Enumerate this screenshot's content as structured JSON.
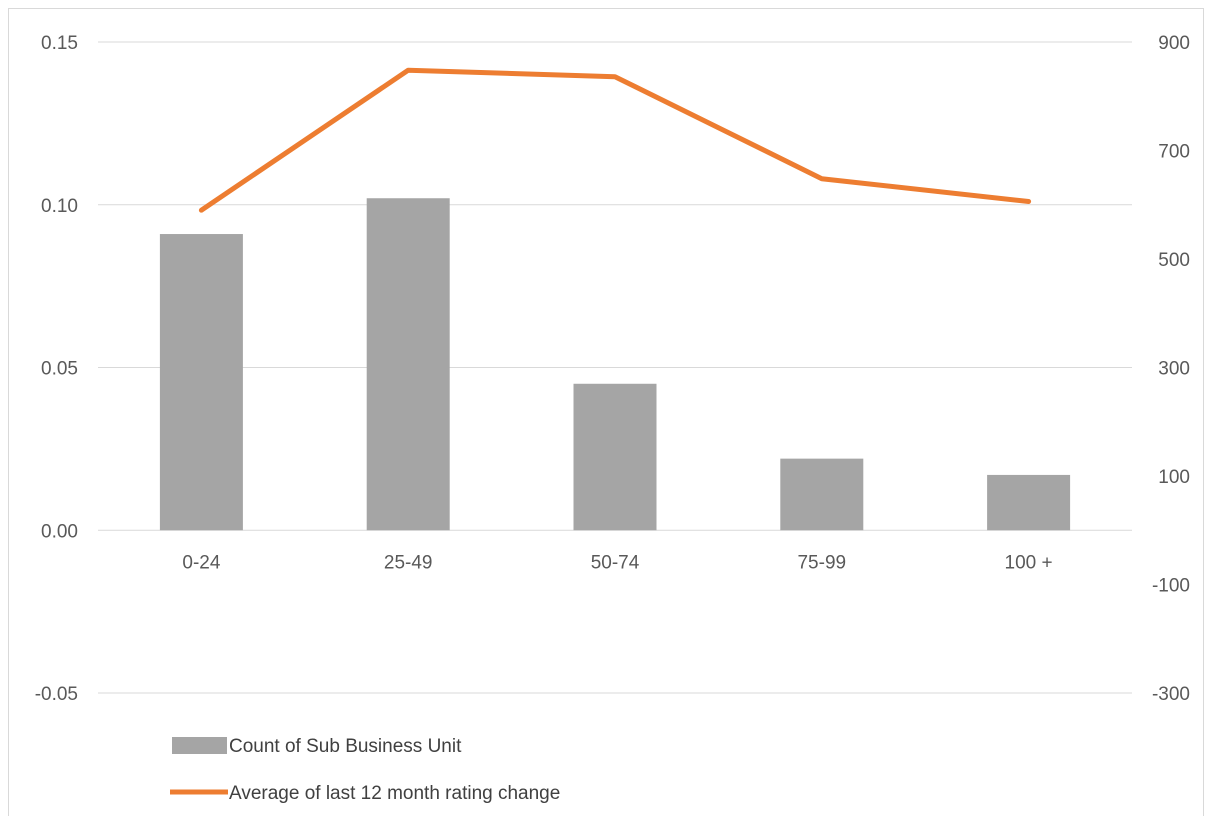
{
  "chart_data": {
    "type": "bar",
    "categories": [
      "0-24",
      "25-49",
      "50-74",
      "75-99",
      "100 +"
    ],
    "series": [
      {
        "name": "Count of Sub Business Unit",
        "type": "bar",
        "axis": "left",
        "color": "#a5a5a5",
        "values": [
          0.091,
          0.102,
          0.045,
          0.022,
          0.017
        ]
      },
      {
        "name": "Average of last 12 month rating change",
        "type": "line",
        "axis": "right",
        "color": "#ed7d31",
        "values": [
          590,
          848,
          836,
          648,
          606
        ]
      }
    ],
    "y_left": {
      "ylim": [
        -0.05,
        0.15
      ],
      "ticks": [
        "0.15",
        "0.10",
        "0.05",
        "0.00",
        "-0.05"
      ],
      "tick_values": [
        0.15,
        0.1,
        0.05,
        0.0,
        -0.05
      ]
    },
    "y_right": {
      "ylim": [
        -300,
        900
      ],
      "ticks": [
        "900",
        "700",
        "500",
        "300",
        "100",
        "-100",
        "-300"
      ],
      "tick_values": [
        900,
        700,
        500,
        300,
        100,
        -100,
        -300
      ]
    },
    "grid": true,
    "legend_position": "bottom-left"
  }
}
